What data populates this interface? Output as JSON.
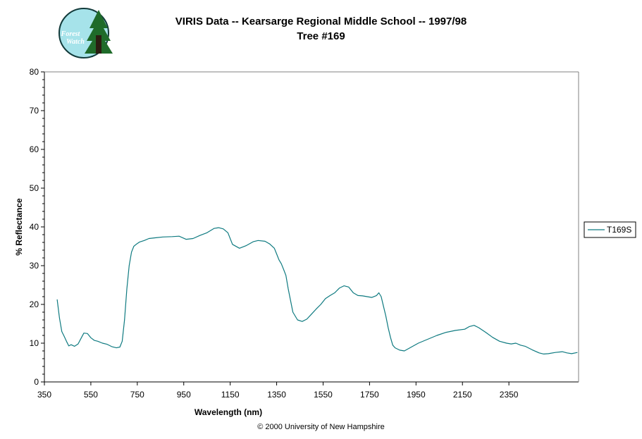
{
  "title": "VIRIS Data -- Kearsarge Regional Middle School -- 1997/98",
  "subtitle": "Tree #169",
  "footer": "© 2000 University of New Hampshire",
  "logo": {
    "line1": "Forest",
    "line2": "Watch"
  },
  "colors": {
    "series": "#0e7a80",
    "logo_bg": "#a6e3ea",
    "logo_tree": "#1f6b2a"
  },
  "chart_data": {
    "type": "line",
    "xlabel": "Wavelength (nm)",
    "ylabel": "% Reflectance",
    "xlim": [
      350,
      2650
    ],
    "ylim": [
      0,
      80
    ],
    "x_ticks": [
      350,
      550,
      750,
      950,
      1150,
      1350,
      1550,
      1750,
      1950,
      2150,
      2350
    ],
    "y_ticks": [
      0,
      10,
      20,
      30,
      40,
      50,
      60,
      70,
      80
    ],
    "grid": false,
    "legend_position": "right",
    "series": [
      {
        "name": "T169S",
        "x": [
          405,
          415,
          425,
          435,
          445,
          455,
          465,
          480,
          495,
          510,
          520,
          535,
          550,
          565,
          580,
          600,
          620,
          640,
          660,
          675,
          685,
          695,
          705,
          715,
          725,
          735,
          745,
          760,
          780,
          800,
          830,
          860,
          900,
          930,
          960,
          990,
          1020,
          1050,
          1080,
          1100,
          1120,
          1140,
          1160,
          1190,
          1220,
          1250,
          1270,
          1300,
          1320,
          1340,
          1350,
          1360,
          1370,
          1380,
          1390,
          1400,
          1420,
          1440,
          1460,
          1480,
          1500,
          1520,
          1540,
          1560,
          1580,
          1600,
          1620,
          1640,
          1660,
          1680,
          1700,
          1720,
          1740,
          1760,
          1780,
          1790,
          1800,
          1810,
          1820,
          1830,
          1840,
          1850,
          1860,
          1880,
          1900,
          1930,
          1960,
          2000,
          2040,
          2080,
          2120,
          2160,
          2180,
          2200,
          2220,
          2250,
          2280,
          2310,
          2340,
          2360,
          2380,
          2400,
          2420,
          2450,
          2480,
          2500,
          2520,
          2550,
          2580,
          2600,
          2620,
          2645
        ],
        "values": [
          21.3,
          16.5,
          13.0,
          11.8,
          10.5,
          9.3,
          9.6,
          9.2,
          9.8,
          11.5,
          12.6,
          12.5,
          11.4,
          10.7,
          10.5,
          10.0,
          9.7,
          9.1,
          8.8,
          9.0,
          10.5,
          16.0,
          24.0,
          30.0,
          33.5,
          35.0,
          35.5,
          36.1,
          36.5,
          37.0,
          37.2,
          37.4,
          37.5,
          37.6,
          36.8,
          37.0,
          37.8,
          38.5,
          39.6,
          39.8,
          39.5,
          38.5,
          35.5,
          34.5,
          35.2,
          36.2,
          36.5,
          36.3,
          35.6,
          34.5,
          33.0,
          31.5,
          30.5,
          29.0,
          27.5,
          24.0,
          18.0,
          16.0,
          15.6,
          16.2,
          17.5,
          18.8,
          20.0,
          21.5,
          22.3,
          23.0,
          24.2,
          24.8,
          24.5,
          23.0,
          22.3,
          22.2,
          22.0,
          21.8,
          22.3,
          23.0,
          22.0,
          19.5,
          17.0,
          14.0,
          11.5,
          9.5,
          8.8,
          8.2,
          8.0,
          9.0,
          10.0,
          11.0,
          12.0,
          12.8,
          13.3,
          13.6,
          14.3,
          14.6,
          14.0,
          12.8,
          11.5,
          10.5,
          10.0,
          9.8,
          10.0,
          9.5,
          9.2,
          8.3,
          7.5,
          7.2,
          7.3,
          7.6,
          7.8,
          7.5,
          7.3,
          7.6
        ]
      }
    ]
  }
}
